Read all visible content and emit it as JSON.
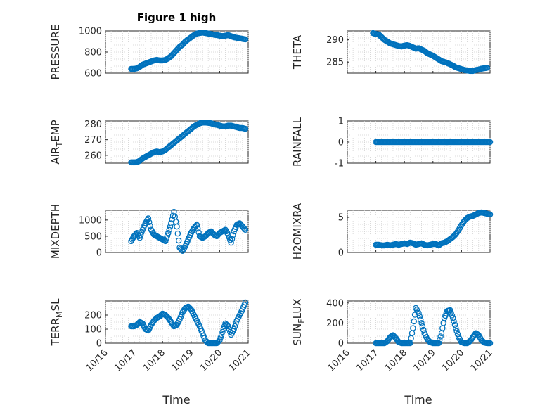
{
  "figure": {
    "title": "Figure 1 high"
  },
  "chart_data": [
    {
      "type": "scatter",
      "name": "pressure",
      "ylabel": "PRESSURE",
      "ylim": [
        600,
        1000
      ],
      "yticks": [
        600,
        800,
        1000
      ],
      "x": [
        0.9,
        1.0,
        1.1,
        1.2,
        1.3,
        1.4,
        1.5,
        1.6,
        1.7,
        1.8,
        1.9,
        2.0,
        2.1,
        2.2,
        2.3,
        2.4,
        2.5,
        2.6,
        2.7,
        2.8,
        2.9,
        3.0,
        3.1,
        3.2,
        3.3,
        3.4,
        3.5,
        3.6,
        3.7,
        3.8,
        3.9,
        4.0,
        4.1,
        4.2,
        4.3,
        4.4,
        4.5,
        4.6,
        4.7,
        4.8,
        4.9
      ],
      "values": [
        640,
        640,
        645,
        660,
        680,
        690,
        700,
        710,
        720,
        725,
        720,
        720,
        725,
        740,
        760,
        790,
        820,
        850,
        870,
        900,
        920,
        940,
        960,
        975,
        980,
        985,
        980,
        975,
        970,
        965,
        960,
        955,
        950,
        955,
        960,
        950,
        940,
        935,
        930,
        925,
        920
      ]
    },
    {
      "type": "scatter",
      "name": "theta",
      "ylabel": "THETA",
      "ylim": [
        282.5,
        292
      ],
      "yticks": [
        285,
        290
      ],
      "x": [
        0.9,
        1.0,
        1.1,
        1.2,
        1.3,
        1.4,
        1.5,
        1.6,
        1.7,
        1.8,
        1.9,
        2.0,
        2.1,
        2.2,
        2.3,
        2.4,
        2.5,
        2.6,
        2.7,
        2.8,
        2.9,
        3.0,
        3.1,
        3.2,
        3.3,
        3.4,
        3.5,
        3.6,
        3.7,
        3.8,
        3.9,
        4.0,
        4.1,
        4.2,
        4.3,
        4.4,
        4.5,
        4.6,
        4.7,
        4.8,
        4.9
      ],
      "values": [
        291.5,
        291.3,
        291.2,
        290.6,
        290.0,
        289.6,
        289.2,
        289.0,
        288.8,
        288.6,
        288.5,
        288.7,
        288.8,
        288.6,
        288.3,
        288.0,
        288.1,
        287.8,
        287.5,
        287.0,
        286.7,
        286.4,
        286.0,
        285.6,
        285.2,
        285.0,
        284.8,
        284.5,
        284.2,
        283.8,
        283.6,
        283.4,
        283.2,
        283.1,
        283.0,
        283.0,
        283.2,
        283.3,
        283.5,
        283.6,
        283.7
      ]
    },
    {
      "type": "scatter",
      "name": "air-temp",
      "ylabel": "AIR_TEMP",
      "ylim": [
        255,
        282
      ],
      "yticks": [
        260,
        270,
        280
      ],
      "x": [
        0.9,
        1.0,
        1.1,
        1.2,
        1.3,
        1.4,
        1.5,
        1.6,
        1.7,
        1.8,
        1.9,
        2.0,
        2.1,
        2.2,
        2.3,
        2.4,
        2.5,
        2.6,
        2.7,
        2.8,
        2.9,
        3.0,
        3.1,
        3.2,
        3.3,
        3.4,
        3.5,
        3.6,
        3.7,
        3.8,
        3.9,
        4.0,
        4.1,
        4.2,
        4.3,
        4.4,
        4.5,
        4.6,
        4.7,
        4.8,
        4.9
      ],
      "values": [
        255.5,
        255.5,
        255.6,
        256.5,
        258.0,
        259.0,
        260.0,
        261.0,
        262.0,
        262.5,
        262.0,
        262.5,
        263.5,
        265.0,
        266.5,
        268.0,
        269.5,
        271.0,
        272.5,
        274.0,
        275.5,
        277.0,
        278.5,
        279.5,
        280.5,
        281.0,
        281.0,
        280.8,
        280.5,
        280.0,
        279.5,
        279.0,
        278.5,
        278.5,
        279.0,
        279.0,
        278.5,
        278.0,
        277.5,
        277.5,
        277.0
      ]
    },
    {
      "type": "scatter",
      "name": "rainfall",
      "ylabel": "RAINFALL",
      "ylim": [
        -1,
        1
      ],
      "yticks": [
        -1,
        0,
        1
      ],
      "x": [
        1.0,
        1.1,
        1.2,
        1.3,
        1.4,
        1.5,
        1.6,
        1.7,
        1.8,
        1.9,
        2.0,
        2.1,
        2.2,
        2.3,
        2.4,
        2.5,
        2.6,
        2.7,
        2.8,
        2.9,
        3.0,
        3.1,
        3.2,
        3.3,
        3.4,
        3.5,
        3.6,
        3.7,
        3.8,
        3.9,
        4.0,
        4.1,
        4.2,
        4.3,
        4.4,
        4.5,
        4.6,
        4.7,
        4.8,
        4.9,
        5.0
      ],
      "values": [
        0,
        0,
        0,
        0,
        0,
        0,
        0,
        0,
        0,
        0,
        0,
        0,
        0,
        0,
        0,
        0,
        0,
        0,
        0,
        0,
        0,
        0,
        0,
        0,
        0,
        0,
        0,
        0,
        0,
        0,
        0,
        0,
        0,
        0,
        0,
        0,
        0,
        0,
        0,
        0,
        0
      ]
    },
    {
      "type": "scatter",
      "name": "mixdepth",
      "ylabel": "MIXDEPTH",
      "ylim": [
        0,
        1300
      ],
      "yticks": [
        0,
        500,
        1000
      ],
      "x": [
        0.9,
        1.0,
        1.1,
        1.2,
        1.3,
        1.4,
        1.5,
        1.6,
        1.7,
        1.8,
        1.9,
        2.0,
        2.1,
        2.2,
        2.3,
        2.4,
        2.5,
        2.6,
        2.7,
        2.8,
        2.9,
        3.0,
        3.1,
        3.2,
        3.3,
        3.4,
        3.5,
        3.6,
        3.7,
        3.8,
        3.9,
        4.0,
        4.1,
        4.2,
        4.3,
        4.4,
        4.5,
        4.6,
        4.7,
        4.8,
        4.9
      ],
      "values": [
        350,
        500,
        600,
        450,
        700,
        900,
        1050,
        700,
        550,
        500,
        450,
        400,
        350,
        600,
        900,
        1250,
        800,
        150,
        50,
        200,
        400,
        600,
        750,
        850,
        500,
        450,
        500,
        600,
        650,
        550,
        500,
        600,
        650,
        700,
        550,
        300,
        650,
        850,
        900,
        800,
        700
      ]
    },
    {
      "type": "scatter",
      "name": "h2omixra",
      "ylabel": "H2OMIXRA",
      "ylim": [
        0,
        6
      ],
      "yticks": [
        0,
        5
      ],
      "x": [
        1.0,
        1.1,
        1.2,
        1.3,
        1.4,
        1.5,
        1.6,
        1.7,
        1.8,
        1.9,
        2.0,
        2.1,
        2.2,
        2.3,
        2.4,
        2.5,
        2.6,
        2.7,
        2.8,
        2.9,
        3.0,
        3.1,
        3.2,
        3.3,
        3.4,
        3.5,
        3.6,
        3.7,
        3.8,
        3.9,
        4.0,
        4.1,
        4.2,
        4.3,
        4.4,
        4.5,
        4.6,
        4.7,
        4.8,
        4.9,
        5.0
      ],
      "values": [
        1.1,
        1.1,
        1.0,
        1.0,
        1.1,
        1.0,
        1.1,
        1.2,
        1.1,
        1.2,
        1.3,
        1.2,
        1.4,
        1.3,
        1.1,
        1.2,
        1.3,
        1.1,
        1.0,
        1.1,
        1.2,
        1.2,
        1.0,
        1.3,
        1.4,
        1.6,
        1.9,
        2.2,
        2.6,
        3.2,
        3.9,
        4.5,
        4.9,
        5.1,
        5.2,
        5.4,
        5.6,
        5.7,
        5.6,
        5.5,
        5.4
      ]
    },
    {
      "type": "scatter",
      "name": "terr-msl",
      "ylabel": "TERR_MSL",
      "ylim": [
        0,
        300
      ],
      "yticks": [
        0,
        100,
        200
      ],
      "x": [
        0.9,
        1.0,
        1.1,
        1.2,
        1.3,
        1.4,
        1.5,
        1.6,
        1.7,
        1.8,
        1.9,
        2.0,
        2.1,
        2.2,
        2.3,
        2.4,
        2.5,
        2.6,
        2.7,
        2.8,
        2.9,
        3.0,
        3.1,
        3.2,
        3.3,
        3.4,
        3.5,
        3.6,
        3.7,
        3.8,
        3.9,
        4.0,
        4.1,
        4.2,
        4.3,
        4.4,
        4.5,
        4.6,
        4.7,
        4.8,
        4.9
      ],
      "values": [
        120,
        120,
        130,
        150,
        140,
        100,
        90,
        130,
        160,
        180,
        190,
        210,
        200,
        180,
        150,
        120,
        130,
        170,
        220,
        250,
        260,
        240,
        200,
        160,
        120,
        70,
        20,
        0,
        0,
        0,
        0,
        20,
        80,
        140,
        120,
        60,
        100,
        160,
        200,
        240,
        290
      ]
    },
    {
      "type": "scatter",
      "name": "sun-flux",
      "ylabel": "SUN_FLUX",
      "ylim": [
        0,
        420
      ],
      "yticks": [
        0,
        200,
        400
      ],
      "x": [
        1.0,
        1.1,
        1.2,
        1.3,
        1.4,
        1.5,
        1.6,
        1.7,
        1.8,
        1.9,
        2.0,
        2.1,
        2.2,
        2.3,
        2.4,
        2.5,
        2.6,
        2.7,
        2.8,
        2.9,
        3.0,
        3.1,
        3.2,
        3.3,
        3.4,
        3.5,
        3.6,
        3.7,
        3.8,
        3.9,
        4.0,
        4.1,
        4.2,
        4.3,
        4.4,
        4.5,
        4.6,
        4.7,
        4.8,
        4.9,
        5.0
      ],
      "values": [
        0,
        0,
        0,
        0,
        20,
        60,
        80,
        50,
        10,
        0,
        0,
        0,
        0,
        150,
        350,
        300,
        200,
        100,
        40,
        10,
        0,
        0,
        0,
        100,
        250,
        320,
        330,
        250,
        150,
        60,
        10,
        0,
        0,
        20,
        60,
        100,
        80,
        30,
        5,
        0,
        0
      ]
    }
  ],
  "xaxis": {
    "ticks": [
      0,
      1,
      2,
      3,
      4,
      5
    ],
    "ticklabels": [
      "10/16",
      "10/17",
      "10/18",
      "10/19",
      "10/20",
      "10/21"
    ],
    "xlim": [
      0,
      5
    ],
    "label_left": "Time",
    "label_right": "Time"
  },
  "colors": {
    "marker": "#0072BD",
    "axis": "#262626",
    "grid": "#d0d0d0"
  }
}
